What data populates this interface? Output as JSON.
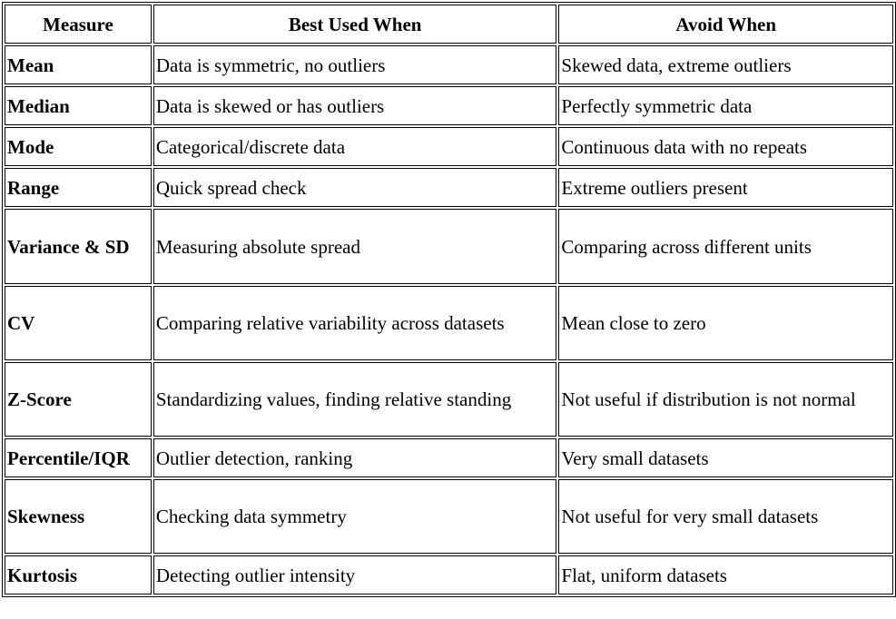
{
  "table": {
    "headers": [
      "Measure",
      "Best Used When",
      "Avoid When"
    ],
    "rows": [
      {
        "measure": "Mean",
        "best": "Data is symmetric, no outliers",
        "avoid": "Skewed data, extreme outliers"
      },
      {
        "measure": "Median",
        "best": "Data is skewed or has outliers",
        "avoid": "Perfectly symmetric data"
      },
      {
        "measure": "Mode",
        "best": "Categorical/discrete data",
        "avoid": "Continuous data with no repeats"
      },
      {
        "measure": "Range",
        "best": "Quick spread check",
        "avoid": "Extreme outliers present"
      },
      {
        "measure": "Variance & SD",
        "best": "Measuring absolute spread",
        "avoid": "Comparing across different units"
      },
      {
        "measure": "CV",
        "best": "Comparing relative variability across datasets",
        "avoid": "Mean close to zero"
      },
      {
        "measure": "Z-Score",
        "best": "Standardizing values, finding relative standing",
        "avoid": "Not useful if distribution is not normal"
      },
      {
        "measure": "Percentile/IQR",
        "best": "Outlier detection, ranking",
        "avoid": "Very small datasets"
      },
      {
        "measure": "Skewness",
        "best": "Checking data symmetry",
        "avoid": "Not useful for very small datasets"
      },
      {
        "measure": "Kurtosis",
        "best": "Detecting outlier intensity",
        "avoid": "Flat, uniform datasets"
      }
    ]
  }
}
